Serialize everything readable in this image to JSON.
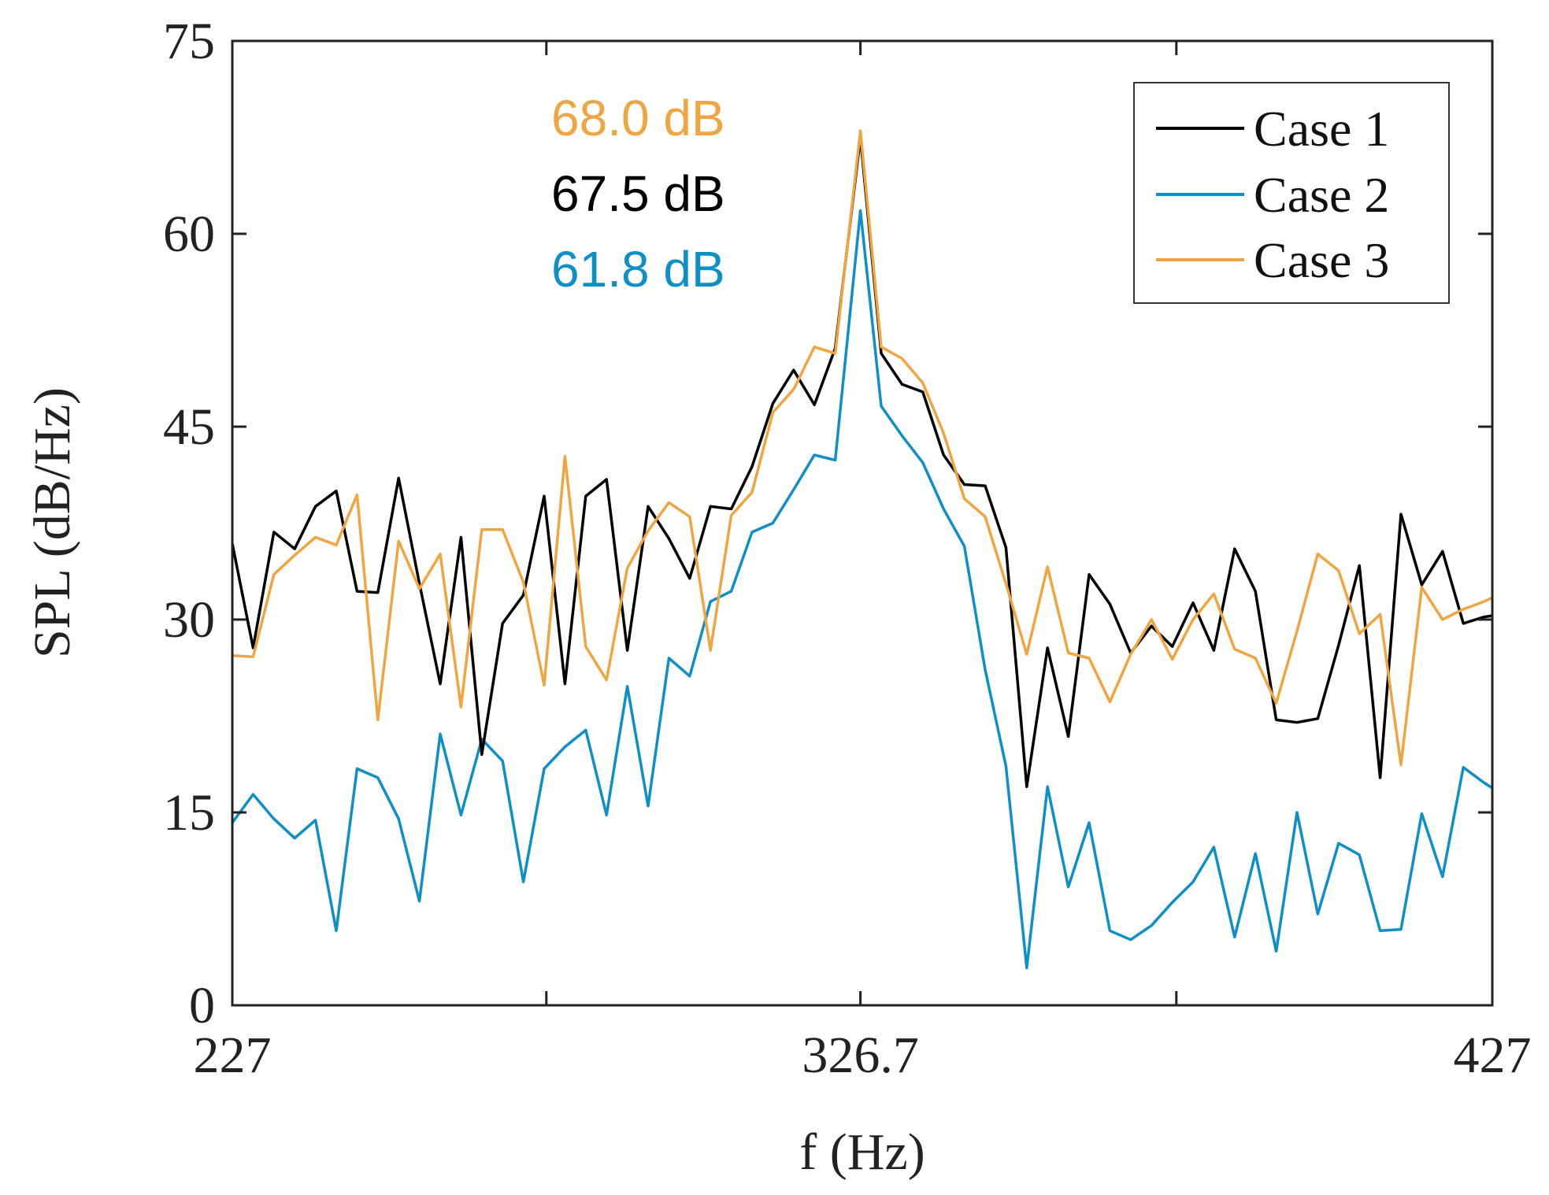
{
  "chart_data": {
    "type": "line",
    "title": "",
    "xlabel": "f (Hz)",
    "ylabel": "SPL (dB/Hz)",
    "xlim": [
      227,
      427
    ],
    "ylim": [
      0,
      75
    ],
    "xticks": [
      227,
      276.85,
      326.7,
      376.85,
      427
    ],
    "xtick_labels": [
      "227",
      "",
      "326.7",
      "",
      "427"
    ],
    "yticks": [
      0,
      15,
      30,
      45,
      60,
      75
    ],
    "ytick_labels": [
      "0",
      "15",
      "30",
      "45",
      "60",
      "75"
    ],
    "grid": false,
    "legend_position": "top-right",
    "x": [
      227,
      230.3,
      233.6,
      236.9,
      240.2,
      243.5,
      246.8,
      250.1,
      253.4,
      256.7,
      260,
      263.3,
      266.6,
      269.9,
      273.2,
      276.5,
      279.8,
      283.1,
      286.4,
      289.7,
      293,
      296.3,
      299.6,
      302.9,
      306.2,
      309.5,
      312.8,
      316.1,
      319.4,
      322.7,
      326.7,
      330,
      333.3,
      336.6,
      339.9,
      343.2,
      346.5,
      349.8,
      353.1,
      356.4,
      359.7,
      363,
      366.3,
      369.6,
      372.9,
      376.2,
      379.5,
      382.8,
      386.1,
      389.4,
      392.7,
      396,
      399.3,
      402.6,
      405.9,
      409.2,
      412.5,
      415.8,
      419.1,
      422.4,
      425.7,
      427
    ],
    "series": [
      {
        "name": "Case 1",
        "color": "#000000",
        "values": [
          35.9,
          27.8,
          36.8,
          35.5,
          38.8,
          40,
          32.2,
          32.1,
          41,
          32.8,
          25,
          36.4,
          19.5,
          29.7,
          31.9,
          39.6,
          25,
          39.6,
          40.9,
          27.6,
          38.8,
          36.3,
          33.2,
          38.8,
          38.6,
          41.9,
          46.8,
          49.4,
          46.7,
          51.1,
          67.5,
          50.7,
          48.3,
          47.7,
          42.8,
          40.5,
          40.4,
          35.6,
          17,
          27.8,
          20.9,
          33.5,
          31.2,
          27.4,
          29.5,
          27.9,
          31.3,
          27.6,
          35.5,
          32.2,
          22.2,
          22,
          22.3,
          28,
          34.2,
          17.7,
          38.2,
          32.7,
          35.3,
          29.7,
          30.2,
          30.3
        ]
      },
      {
        "name": "Case 2",
        "color": "#0f8fc7",
        "values": [
          14.2,
          16.4,
          14.5,
          13,
          14.4,
          5.8,
          18.4,
          17.7,
          14.5,
          8.1,
          21.1,
          14.8,
          20.7,
          19,
          9.6,
          18.4,
          20.1,
          21.4,
          14.8,
          24.8,
          15.5,
          27,
          25.6,
          31.4,
          32.2,
          36.8,
          37.5,
          40.1,
          42.8,
          42.4,
          61.8,
          46.6,
          44.3,
          42.2,
          38.6,
          35.7,
          26.1,
          18.6,
          2.9,
          17,
          9.2,
          14.2,
          5.8,
          5.1,
          6.2,
          8,
          9.6,
          12.3,
          5.3,
          11.8,
          4.2,
          15,
          7.1,
          12.6,
          11.7,
          5.8,
          5.9,
          14.9,
          10,
          18.5,
          17.3,
          16.9
        ]
      },
      {
        "name": "Case 3",
        "color": "#f0a540",
        "values": [
          27.2,
          27.1,
          33.5,
          35,
          36.4,
          35.8,
          39.7,
          22.2,
          36.1,
          32.4,
          35.1,
          23.2,
          37,
          37,
          32.9,
          24.9,
          42.7,
          27.9,
          25.3,
          34,
          36.9,
          39.1,
          38,
          27.6,
          38.1,
          39.9,
          46.1,
          47.9,
          51.2,
          50.7,
          68,
          51.2,
          50.3,
          48.4,
          44.5,
          39.4,
          38,
          32.8,
          27.3,
          34.1,
          27.4,
          27,
          23.6,
          27.3,
          30,
          26.9,
          30,
          32,
          27.7,
          27,
          23.5,
          29.1,
          35.1,
          33.8,
          28.9,
          30.4,
          18.7,
          32.5,
          30,
          30.8,
          31.4,
          31.7
        ]
      }
    ],
    "annotations": [
      {
        "text": "68.0 dB",
        "color": "#f0a540"
      },
      {
        "text": "67.5 dB",
        "color": "#000000"
      },
      {
        "text": "61.8 dB",
        "color": "#0f8fc7"
      }
    ]
  }
}
